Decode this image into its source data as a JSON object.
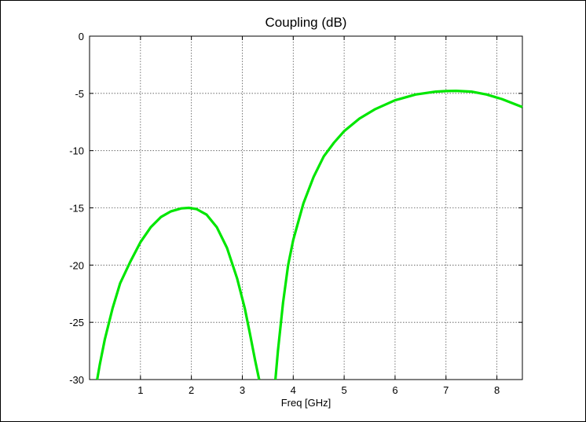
{
  "chart_data": {
    "type": "line",
    "title": "Coupling (dB)",
    "xlabel": "Freq [GHz]",
    "ylabel": "",
    "xlim": [
      0,
      8.5
    ],
    "ylim": [
      -30,
      0
    ],
    "x_ticks": [
      1,
      2,
      3,
      4,
      5,
      6,
      7,
      8
    ],
    "y_ticks": [
      0,
      -5,
      -10,
      -15,
      -20,
      -25,
      -30
    ],
    "x_tick_labels": [
      "1",
      "2",
      "3",
      "4",
      "5",
      "6",
      "7",
      "8"
    ],
    "y_tick_labels": [
      "0",
      "-5",
      "-10",
      "-15",
      "-20",
      "-25",
      "-30"
    ],
    "grid": true,
    "legend": "none",
    "series_color": "#00e600",
    "series": [
      {
        "segments": [
          {
            "x": [
              0.15,
              0.2,
              0.3,
              0.45,
              0.6,
              0.8,
              1.0,
              1.2,
              1.4,
              1.6,
              1.8,
              1.95,
              2.1,
              2.3,
              2.5,
              2.7,
              2.9,
              3.05,
              3.15,
              3.25,
              3.33
            ],
            "y": [
              -30,
              -28.7,
              -26.5,
              -23.8,
              -21.6,
              -19.7,
              -18.0,
              -16.7,
              -15.8,
              -15.3,
              -15.05,
              -15.0,
              -15.1,
              -15.6,
              -16.7,
              -18.5,
              -21.2,
              -23.8,
              -26.0,
              -28.3,
              -30
            ]
          },
          {
            "x": [
              3.65,
              3.7,
              3.8,
              3.9,
              4.0,
              4.2,
              4.4,
              4.6,
              4.8,
              5.0,
              5.3,
              5.6,
              6.0,
              6.4,
              6.8,
              7.0,
              7.2,
              7.5,
              7.8,
              8.1,
              8.5
            ],
            "y": [
              -30,
              -27.5,
              -23.3,
              -20.0,
              -17.8,
              -14.6,
              -12.3,
              -10.5,
              -9.3,
              -8.3,
              -7.2,
              -6.4,
              -5.6,
              -5.1,
              -4.85,
              -4.8,
              -4.78,
              -4.85,
              -5.1,
              -5.5,
              -6.2
            ]
          }
        ]
      }
    ]
  }
}
